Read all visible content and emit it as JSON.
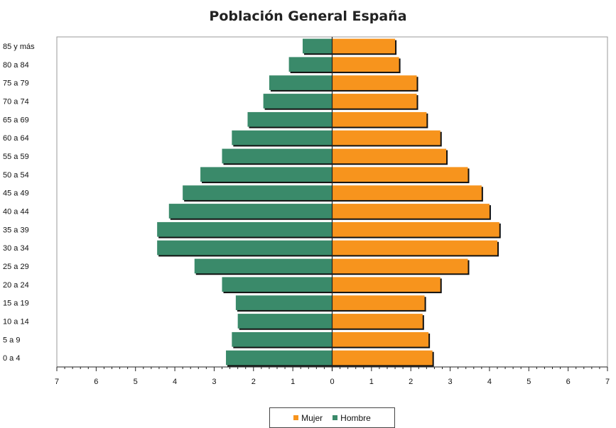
{
  "chart_data": {
    "type": "bar",
    "orientation": "horizontal",
    "title": "Población General España",
    "categories": [
      "0 a 4",
      "5 a 9",
      "10 a 14",
      "15 a 19",
      "20 a 24",
      "25 a 29",
      "30 a 34",
      "35 a 39",
      "40 a 44",
      "45 a 49",
      "50 a 54",
      "55 a 59",
      "60 a 64",
      "65 a 69",
      "70 a 74",
      "75 a 79",
      "80 a 84",
      "85 y más"
    ],
    "series": [
      {
        "name": "Mujer",
        "color": "#f7941d",
        "side": "right",
        "values": [
          2.55,
          2.45,
          2.3,
          2.35,
          2.75,
          3.45,
          4.2,
          4.25,
          4.0,
          3.8,
          3.45,
          2.9,
          2.75,
          2.4,
          2.15,
          2.15,
          1.7,
          1.6
        ]
      },
      {
        "name": "Hombre",
        "color": "#3a8a6a",
        "side": "left",
        "values": [
          2.7,
          2.55,
          2.4,
          2.45,
          2.8,
          3.5,
          4.45,
          4.45,
          4.15,
          3.8,
          3.35,
          2.8,
          2.55,
          2.15,
          1.75,
          1.6,
          1.1,
          0.75
        ]
      }
    ],
    "xlim": [
      -7,
      7
    ],
    "xticks": [
      "7",
      "6",
      "5",
      "4",
      "3",
      "2",
      "1",
      "0",
      "1",
      "2",
      "3",
      "4",
      "5",
      "6",
      "7"
    ],
    "grid": false,
    "legend_position": "bottom-center"
  }
}
